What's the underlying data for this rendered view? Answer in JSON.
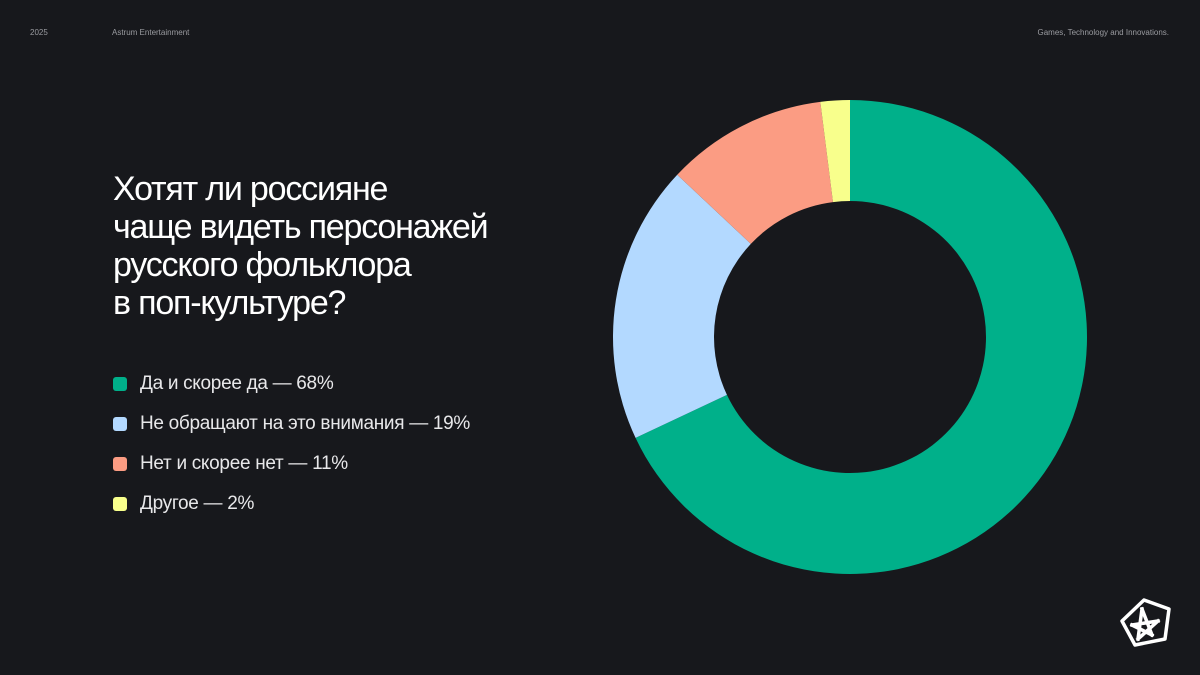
{
  "header": {
    "year": "2025",
    "company": "Astrum Entertainment",
    "tagline": "Games, Technology and Innovations."
  },
  "title_lines": [
    "Хотят ли россияне",
    "чаще видеть персонажей",
    "русского фольклора",
    "в поп-культуре?"
  ],
  "legend": [
    {
      "label": "Да и скорее да — 68%",
      "color": "#00b08a"
    },
    {
      "label": "Не обращают на это внимания — 19%",
      "color": "#b3d9ff"
    },
    {
      "label": "Нет и скорее нет — 11%",
      "color": "#fb9c83"
    },
    {
      "label": "Другое — 2%",
      "color": "#f8ff8c"
    }
  ],
  "logo": {
    "icon": "astrum-star-pentagon-logo"
  },
  "chart_data": {
    "type": "pie",
    "subtype": "donut",
    "title": "Хотят ли россияне чаще видеть персонажей русского фольклора в поп-культуре?",
    "categories": [
      "Да и скорее да",
      "Не обращают на это внимания",
      "Нет и скорее нет",
      "Другое"
    ],
    "values": [
      68,
      19,
      11,
      2
    ],
    "unit": "%",
    "colors": [
      "#00b08a",
      "#b3d9ff",
      "#fb9c83",
      "#f8ff8c"
    ],
    "start_angle": "top, clockwise",
    "legend_position": "left"
  }
}
